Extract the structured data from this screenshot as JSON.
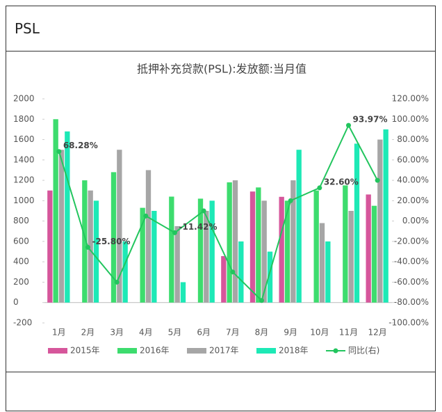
{
  "header": "PSL",
  "chart_data": {
    "type": "bar-line",
    "title": "抵押补充贷款(PSL):发放额:当月值",
    "categories": [
      "1月",
      "2月",
      "3月",
      "4月",
      "5月",
      "6月",
      "7月",
      "8月",
      "9月",
      "10月",
      "11月",
      "12月"
    ],
    "series": [
      {
        "name": "2015年",
        "color": "#d6569b",
        "values": [
          1100,
          0,
          0,
          0,
          0,
          0,
          456,
          1090,
          1038,
          0,
          0,
          1061
        ]
      },
      {
        "name": "2016年",
        "color": "#3ddc6e",
        "values": [
          1800,
          1200,
          1280,
          930,
          1040,
          1020,
          1180,
          1130,
          1000,
          1100,
          1150,
          950
        ]
      },
      {
        "name": "2017年",
        "color": "#a6a6a6",
        "values": [
          1500,
          1100,
          1500,
          1300,
          750,
          900,
          1200,
          1000,
          1200,
          780,
          900,
          1600
        ]
      },
      {
        "name": "2018年",
        "color": "#1de9b6",
        "values": [
          1680,
          1000,
          600,
          900,
          200,
          1000,
          600,
          500,
          1500,
          600,
          1560,
          1700
        ]
      },
      {
        "name": "同比(右)",
        "color": "#22c55e",
        "axis": "y2",
        "line": true,
        "values": [
          68.28,
          -25.8,
          -60,
          5,
          -11.42,
          10,
          -50,
          -78,
          20,
          32.6,
          93.97,
          40
        ],
        "value_labels": [
          "68.28%",
          "-25.80%",
          null,
          null,
          "-11.42%",
          null,
          null,
          null,
          null,
          "32.60%",
          "93.97%",
          null
        ]
      }
    ],
    "ylim": [
      -200,
      2000
    ],
    "yticks": [
      -200,
      0,
      200,
      400,
      600,
      800,
      1000,
      1200,
      1400,
      1600,
      1800,
      2000
    ],
    "y2lim": [
      -100,
      120
    ],
    "y2ticks": [
      {
        "value": -100,
        "label": "-100.00%"
      },
      {
        "value": -80,
        "label": "-80.00%"
      },
      {
        "value": -60,
        "label": "-60.00%"
      },
      {
        "value": -40,
        "label": "-40.00%"
      },
      {
        "value": -20,
        "label": "-20.00%"
      },
      {
        "value": 0,
        "label": "0.00%"
      },
      {
        "value": 20,
        "label": "20.00%"
      },
      {
        "value": 40,
        "label": "40.00%"
      },
      {
        "value": 60,
        "label": "60.00%"
      },
      {
        "value": 80,
        "label": "80.00%"
      },
      {
        "value": 100,
        "label": "100.00%"
      },
      {
        "value": 120,
        "label": "120.00%"
      }
    ],
    "legend": "bottom"
  }
}
